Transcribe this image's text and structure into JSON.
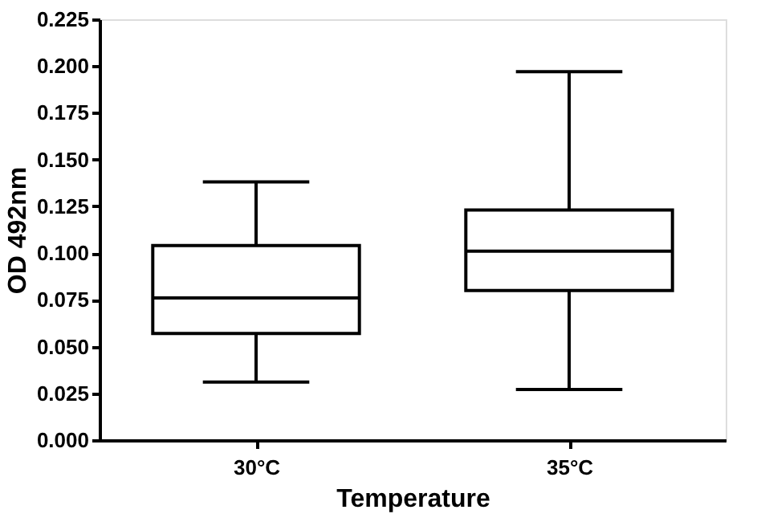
{
  "chart_data": {
    "type": "box",
    "xlabel": "Temperature",
    "ylabel": "OD 492nm",
    "categories": [
      "30°C",
      "35°C"
    ],
    "boxes": [
      {
        "low": 0.031,
        "q1": 0.057,
        "median": 0.076,
        "q3": 0.104,
        "high": 0.138
      },
      {
        "low": 0.027,
        "q1": 0.08,
        "median": 0.101,
        "q3": 0.123,
        "high": 0.197
      }
    ],
    "ylim": [
      0,
      0.225
    ],
    "yticks": [
      {
        "value": 0,
        "label": "0.000"
      },
      {
        "value": 0.025,
        "label": "0.025"
      },
      {
        "value": 0.05,
        "label": "0.050"
      },
      {
        "value": 0.075,
        "label": "0.075"
      },
      {
        "value": 0.1,
        "label": "0.100"
      },
      {
        "value": 0.125,
        "label": "0.125"
      },
      {
        "value": 0.15,
        "label": "0.150"
      },
      {
        "value": 0.175,
        "label": "0.175"
      },
      {
        "value": 0.2,
        "label": "0.200"
      },
      {
        "value": 0.225,
        "label": "0.225"
      }
    ],
    "grid": false
  }
}
